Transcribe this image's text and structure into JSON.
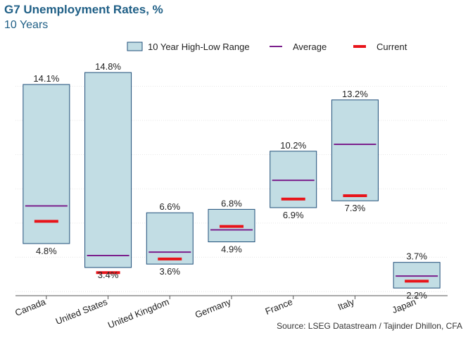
{
  "title": "G7 Unemployment Rates, %",
  "subtitle": "10 Years",
  "source": "Source: LSEG Datastream / Tajinder Dhillon, CFA",
  "colors": {
    "title": "#1f5f86",
    "box_fill": "#c2dde4",
    "box_stroke": "#1f4e79",
    "average": "#7b1f8c",
    "current": "#e8141a",
    "grid": "#e6e6e6",
    "axis": "#555555"
  },
  "chart_data": {
    "type": "range-bar",
    "title": "G7 Unemployment Rates, %",
    "subtitle": "10 Years",
    "ylim": [
      2,
      15.5
    ],
    "grid": true,
    "legend": {
      "placement": "top",
      "range_label": "10 Year High-Low Range",
      "average_label": "Average",
      "current_label": "Current"
    },
    "categories": [
      "Canada",
      "United States",
      "United Kingdom",
      "Germany",
      "France",
      "Italy",
      "Japan"
    ],
    "high": [
      14.1,
      14.8,
      6.6,
      6.8,
      10.2,
      13.2,
      3.7
    ],
    "low": [
      4.8,
      3.4,
      3.6,
      4.9,
      6.9,
      7.3,
      2.2
    ],
    "average": [
      7.0,
      4.1,
      4.3,
      5.6,
      8.5,
      10.6,
      2.9
    ],
    "current": [
      6.1,
      3.1,
      3.9,
      5.8,
      7.4,
      7.6,
      2.6
    ],
    "high_labels": [
      "14.1%",
      "14.8%",
      "6.6%",
      "6.8%",
      "10.2%",
      "13.2%",
      "3.7%"
    ],
    "low_labels": [
      "4.8%",
      "3.4%",
      "3.6%",
      "4.9%",
      "6.9%",
      "7.3%",
      "2.2%"
    ]
  }
}
